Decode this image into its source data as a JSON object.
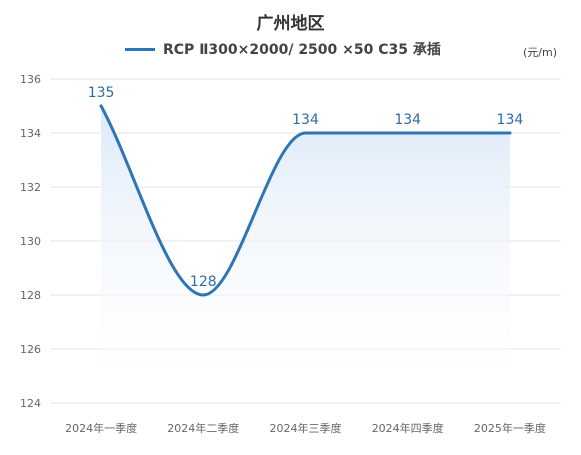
{
  "chart_data": {
    "type": "line",
    "title": "广州地区",
    "unit": "(元/m)",
    "categories": [
      "2024年一季度",
      "2024年二季度",
      "2024年三季度",
      "2024年四季度",
      "2025年一季度"
    ],
    "series": [
      {
        "name": "RCP Ⅱ300×2000/ 2500 ×50 C35 承插",
        "values": [
          135,
          128,
          134,
          134,
          134
        ]
      }
    ],
    "ylim": [
      124,
      136
    ],
    "yticks": [
      124,
      126,
      128,
      130,
      132,
      134,
      136
    ],
    "grid": true,
    "smooth": true,
    "area_fill": true,
    "data_labels": true,
    "legend_position": "top",
    "colors": {
      "line": "#2e75b6",
      "area": "#dce9f8",
      "grid": "#e6e6e6",
      "label": "#2d6ca8"
    }
  }
}
